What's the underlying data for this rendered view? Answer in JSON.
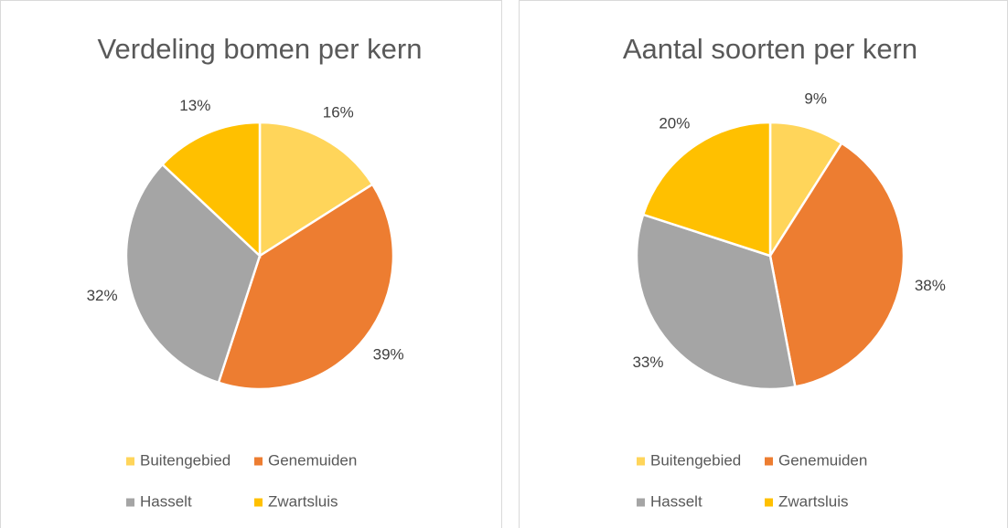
{
  "chart_data": [
    {
      "type": "pie",
      "title": "Verdeling bomen per kern",
      "categories": [
        "Buitengebied",
        "Genemuiden",
        "Hasselt",
        "Zwartsluis"
      ],
      "values": [
        16,
        39,
        32,
        13
      ],
      "value_labels": [
        "16%",
        "39%",
        "32%",
        "13%"
      ],
      "colors": [
        "#ffd55a",
        "#ed7d31",
        "#a5a5a5",
        "#ffc000"
      ]
    },
    {
      "type": "pie",
      "title": "Aantal soorten per kern",
      "categories": [
        "Buitengebied",
        "Genemuiden",
        "Hasselt",
        "Zwartsluis"
      ],
      "values": [
        9,
        38,
        33,
        20
      ],
      "value_labels": [
        "9%",
        "38%",
        "33%",
        "20%"
      ],
      "colors": [
        "#ffd55a",
        "#ed7d31",
        "#a5a5a5",
        "#ffc000"
      ]
    }
  ]
}
